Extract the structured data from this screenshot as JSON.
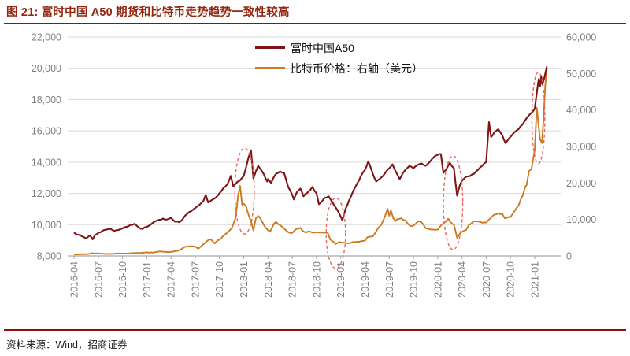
{
  "header": {
    "title": "图 21: 富时中国 A50 期货和比特币走势趋势一致性较高"
  },
  "source": {
    "label": "资料来源：Wind，招商证券"
  },
  "legend": [
    {
      "label": "富时中国A50",
      "color": "#7e1416"
    },
    {
      "label": "比特币价格：右轴（美元）",
      "color": "#cc7a1f"
    }
  ],
  "colors": {
    "accent_red": "#93270f",
    "rule_red": "#8e130a",
    "a50_line": "#7e1416",
    "btc_line": "#cc7a1f",
    "ellipse": "#f0625c",
    "grid": "#d9d9d9",
    "axis_line": "#a6a6a6",
    "axis_text": "#7f7f7f"
  },
  "chart_data": {
    "type": "line",
    "title": "富时中国A50期货和比特币走势",
    "x_unit": "months since 2016-04",
    "x_tick_labels": [
      "2016-04",
      "2016-07",
      "2016-10",
      "2017-01",
      "2017-04",
      "2017-07",
      "2017-10",
      "2018-01",
      "2018-04",
      "2018-07",
      "2018-10",
      "2019-01",
      "2019-04",
      "2019-07",
      "2019-10",
      "2020-01",
      "2020-04",
      "2020-07",
      "2020-10",
      "2021-01"
    ],
    "left_axis": {
      "min": 8000,
      "max": 22000,
      "tick_step": 2000,
      "tick_labels": [
        "22,000",
        "20,000",
        "18,000",
        "16,000",
        "14,000",
        "12,000",
        "10,000",
        "8,000"
      ]
    },
    "right_axis": {
      "min": 0,
      "max": 60000,
      "tick_step": 10000,
      "tick_labels": [
        "60,000",
        "50,000",
        "40,000",
        "30,000",
        "20,000",
        "10,000",
        "0"
      ]
    },
    "grid": "horizontal-only",
    "legend_position": "top-center",
    "series": [
      {
        "name": "富时中国A50",
        "axis": "left",
        "color": "#7e1416",
        "anchors": [
          [
            0,
            9500
          ],
          [
            0.5,
            9350
          ],
          [
            1,
            9250
          ],
          [
            1.5,
            9120
          ],
          [
            2,
            9320
          ],
          [
            2.3,
            9060
          ],
          [
            2.6,
            9350
          ],
          [
            3,
            9480
          ],
          [
            3.5,
            9600
          ],
          [
            4,
            9680
          ],
          [
            4.5,
            9730
          ],
          [
            5,
            9600
          ],
          [
            5.5,
            9660
          ],
          [
            6,
            9760
          ],
          [
            6.5,
            9860
          ],
          [
            7,
            9990
          ],
          [
            7.5,
            10060
          ],
          [
            8,
            9820
          ],
          [
            8.5,
            9730
          ],
          [
            9,
            9860
          ],
          [
            9.5,
            10010
          ],
          [
            10,
            10200
          ],
          [
            10.5,
            10310
          ],
          [
            11,
            10390
          ],
          [
            11.5,
            10330
          ],
          [
            12,
            10430
          ],
          [
            12.5,
            10190
          ],
          [
            13,
            10160
          ],
          [
            13.5,
            10390
          ],
          [
            14,
            10690
          ],
          [
            14.5,
            10860
          ],
          [
            15,
            11060
          ],
          [
            15.5,
            11260
          ],
          [
            16,
            11510
          ],
          [
            16.3,
            11900
          ],
          [
            16.6,
            11420
          ],
          [
            17,
            11560
          ],
          [
            17.5,
            11710
          ],
          [
            18,
            12010
          ],
          [
            18.5,
            12360
          ],
          [
            19,
            12610
          ],
          [
            19.4,
            13120
          ],
          [
            19.7,
            12460
          ],
          [
            20,
            12610
          ],
          [
            20.5,
            12810
          ],
          [
            21,
            13110
          ],
          [
            21.6,
            14320
          ],
          [
            21.9,
            14760
          ],
          [
            22.2,
            12960
          ],
          [
            22.5,
            13410
          ],
          [
            22.8,
            13760
          ],
          [
            23,
            13610
          ],
          [
            23.5,
            13210
          ],
          [
            23.9,
            12760
          ],
          [
            24,
            12910
          ],
          [
            24.4,
            12660
          ],
          [
            24.8,
            13110
          ],
          [
            25,
            13260
          ],
          [
            25.5,
            13410
          ],
          [
            26,
            13310
          ],
          [
            26.5,
            12410
          ],
          [
            27,
            11910
          ],
          [
            27.2,
            11610
          ],
          [
            27.6,
            12110
          ],
          [
            28,
            12310
          ],
          [
            28.4,
            11810
          ],
          [
            28.8,
            12010
          ],
          [
            29,
            12110
          ],
          [
            29.5,
            12410
          ],
          [
            30,
            12010
          ],
          [
            30.3,
            11310
          ],
          [
            30.7,
            11510
          ],
          [
            31,
            11710
          ],
          [
            31.5,
            11810
          ],
          [
            32,
            11410
          ],
          [
            32.5,
            11010
          ],
          [
            33,
            10510
          ],
          [
            33.2,
            10280
          ],
          [
            33.6,
            11010
          ],
          [
            34,
            11510
          ],
          [
            34.5,
            12110
          ],
          [
            35,
            12610
          ],
          [
            35.5,
            13110
          ],
          [
            36,
            13510
          ],
          [
            36.4,
            14050
          ],
          [
            36.8,
            13510
          ],
          [
            37,
            13210
          ],
          [
            37.4,
            12760
          ],
          [
            37.8,
            12910
          ],
          [
            38,
            13010
          ],
          [
            38.5,
            13310
          ],
          [
            39,
            13610
          ],
          [
            39.4,
            13860
          ],
          [
            39.8,
            13410
          ],
          [
            40,
            13210
          ],
          [
            40.3,
            12910
          ],
          [
            40.7,
            13310
          ],
          [
            41,
            13510
          ],
          [
            41.5,
            13760
          ],
          [
            42,
            13610
          ],
          [
            42.5,
            13810
          ],
          [
            43,
            13910
          ],
          [
            43.5,
            13760
          ],
          [
            44,
            14010
          ],
          [
            44.5,
            14310
          ],
          [
            45,
            14460
          ],
          [
            45.4,
            14510
          ],
          [
            45.7,
            13310
          ],
          [
            46,
            13510
          ],
          [
            46.5,
            13960
          ],
          [
            47,
            13610
          ],
          [
            47.4,
            11860
          ],
          [
            47.8,
            12610
          ],
          [
            48,
            12810
          ],
          [
            48.5,
            13060
          ],
          [
            49,
            13110
          ],
          [
            49.5,
            13260
          ],
          [
            50,
            13510
          ],
          [
            50.5,
            13760
          ],
          [
            51,
            14010
          ],
          [
            51.2,
            15510
          ],
          [
            51.35,
            16560
          ],
          [
            51.6,
            15610
          ],
          [
            52,
            15910
          ],
          [
            52.5,
            16110
          ],
          [
            53,
            15710
          ],
          [
            53.4,
            15210
          ],
          [
            53.8,
            15510
          ],
          [
            54,
            15610
          ],
          [
            54.5,
            15910
          ],
          [
            55,
            16110
          ],
          [
            55.5,
            16410
          ],
          [
            56,
            16810
          ],
          [
            56.5,
            17110
          ],
          [
            57,
            17410
          ],
          [
            57.3,
            18610
          ],
          [
            57.5,
            19310
          ],
          [
            57.65,
            18860
          ],
          [
            57.8,
            19510
          ],
          [
            57.95,
            18960
          ],
          [
            58.2,
            19410
          ],
          [
            58.5,
            20110
          ]
        ]
      },
      {
        "name": "比特币价格：右轴（美元）",
        "axis": "right",
        "color": "#cc7a1f",
        "anchors": [
          [
            0,
            420
          ],
          [
            1,
            450
          ],
          [
            1.5,
            480
          ],
          [
            2,
            580
          ],
          [
            2.2,
            760
          ],
          [
            2.5,
            660
          ],
          [
            3,
            680
          ],
          [
            3.5,
            620
          ],
          [
            4,
            580
          ],
          [
            5,
            610
          ],
          [
            6,
            640
          ],
          [
            7,
            730
          ],
          [
            8,
            780
          ],
          [
            8.8,
            960
          ],
          [
            9,
            1000
          ],
          [
            9.3,
            890
          ],
          [
            10,
            1010
          ],
          [
            10.8,
            1230
          ],
          [
            11,
            1150
          ],
          [
            11.5,
            1040
          ],
          [
            12,
            1130
          ],
          [
            12.8,
            1400
          ],
          [
            13,
            1560
          ],
          [
            13.7,
            2460
          ],
          [
            14,
            2560
          ],
          [
            14.5,
            2660
          ],
          [
            15,
            2550
          ],
          [
            15.4,
            2010
          ],
          [
            15.8,
            2810
          ],
          [
            16,
            3210
          ],
          [
            16.7,
            4510
          ],
          [
            17,
            4410
          ],
          [
            17.4,
            3410
          ],
          [
            17.8,
            4310
          ],
          [
            18,
            4410
          ],
          [
            18.7,
            5910
          ],
          [
            19,
            6410
          ],
          [
            19.5,
            7510
          ],
          [
            19.9,
            9910
          ],
          [
            20,
            10510
          ],
          [
            20.3,
            16510
          ],
          [
            20.55,
            19210
          ],
          [
            20.8,
            14010
          ],
          [
            21,
            14310
          ],
          [
            21.3,
            13510
          ],
          [
            21.6,
            11210
          ],
          [
            21.9,
            9510
          ],
          [
            22.2,
            7010
          ],
          [
            22.5,
            10310
          ],
          [
            22.8,
            11010
          ],
          [
            23,
            10510
          ],
          [
            23.5,
            8410
          ],
          [
            24,
            7010
          ],
          [
            24.3,
            6810
          ],
          [
            24.8,
            9010
          ],
          [
            25,
            9310
          ],
          [
            25.5,
            8410
          ],
          [
            26,
            7510
          ],
          [
            26.5,
            6510
          ],
          [
            27,
            6310
          ],
          [
            27.5,
            7410
          ],
          [
            28,
            7710
          ],
          [
            28.3,
            6910
          ],
          [
            28.7,
            6410
          ],
          [
            29,
            6710
          ],
          [
            29.5,
            6410
          ],
          [
            30,
            6510
          ],
          [
            30.5,
            6410
          ],
          [
            31,
            6360
          ],
          [
            31.4,
            6310
          ],
          [
            31.7,
            4510
          ],
          [
            32,
            4010
          ],
          [
            32.4,
            3260
          ],
          [
            32.8,
            3810
          ],
          [
            33,
            3710
          ],
          [
            33.5,
            3560
          ],
          [
            34,
            3460
          ],
          [
            34.5,
            3810
          ],
          [
            35,
            3860
          ],
          [
            35.5,
            4010
          ],
          [
            36,
            4160
          ],
          [
            36.3,
            5110
          ],
          [
            36.8,
            5310
          ],
          [
            37,
            5410
          ],
          [
            37.5,
            7210
          ],
          [
            38,
            8510
          ],
          [
            38.5,
            11010
          ],
          [
            38.8,
            12910
          ],
          [
            39,
            11010
          ],
          [
            39.2,
            12510
          ],
          [
            39.5,
            10310
          ],
          [
            39.8,
            9610
          ],
          [
            40,
            10110
          ],
          [
            40.5,
            10310
          ],
          [
            41,
            9710
          ],
          [
            41.6,
            8210
          ],
          [
            42,
            8310
          ],
          [
            42.6,
            9510
          ],
          [
            43,
            9210
          ],
          [
            43.5,
            7610
          ],
          [
            44,
            7310
          ],
          [
            44.5,
            7210
          ],
          [
            45,
            7210
          ],
          [
            45.5,
            8610
          ],
          [
            46,
            9410
          ],
          [
            46.3,
            10210
          ],
          [
            46.8,
            8810
          ],
          [
            47,
            8610
          ],
          [
            47.4,
            4960
          ],
          [
            47.8,
            6310
          ],
          [
            48,
            6610
          ],
          [
            48.5,
            7110
          ],
          [
            48.9,
            8710
          ],
          [
            49,
            8610
          ],
          [
            49.5,
            9510
          ],
          [
            50,
            9460
          ],
          [
            50.5,
            9110
          ],
          [
            51,
            9160
          ],
          [
            51.8,
            11010
          ],
          [
            52,
            11310
          ],
          [
            52.5,
            11710
          ],
          [
            53,
            11510
          ],
          [
            53.3,
            10310
          ],
          [
            53.8,
            10710
          ],
          [
            54,
            10610
          ],
          [
            54.7,
            13010
          ],
          [
            55,
            13810
          ],
          [
            55.5,
            16510
          ],
          [
            55.9,
            19210
          ],
          [
            56,
            19410
          ],
          [
            56.3,
            23310
          ],
          [
            56.6,
            23810
          ],
          [
            57,
            29010
          ],
          [
            57.25,
            40610
          ],
          [
            57.5,
            35510
          ],
          [
            57.65,
            32010
          ],
          [
            57.9,
            30910
          ],
          [
            58.1,
            38010
          ],
          [
            58.3,
            46510
          ],
          [
            58.5,
            51510
          ]
        ]
      }
    ],
    "annotations": [
      {
        "shape": "dashed-ellipse",
        "t": 21.1,
        "rt": 1.2,
        "v_top": 14900,
        "v_bottom": 9400
      },
      {
        "shape": "dashed-ellipse",
        "t": 32.4,
        "rt": 1.2,
        "v_top": 11700,
        "v_bottom": 7200
      },
      {
        "shape": "dashed-ellipse",
        "t": 46.9,
        "rt": 1.2,
        "v_top": 14400,
        "v_bottom": 8400
      },
      {
        "shape": "dashed-ellipse",
        "t": 57.45,
        "rt": 0.8,
        "v_top": 19750,
        "v_bottom": 13900
      }
    ]
  }
}
